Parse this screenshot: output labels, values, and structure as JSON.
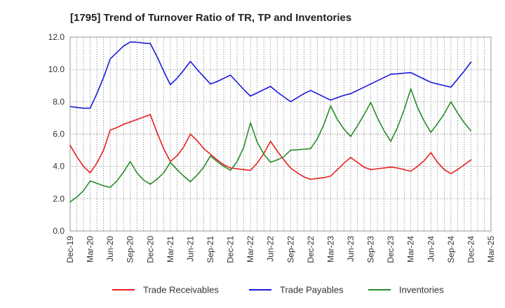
{
  "chart_data": {
    "type": "line",
    "title": "[1795]  Trend of Turnover Ratio of TR, TP and Inventories",
    "xlabel": "",
    "ylabel": "",
    "ylim": [
      0,
      12
    ],
    "yticks": [
      "0.0",
      "2.0",
      "4.0",
      "6.0",
      "8.0",
      "10.0",
      "12.0"
    ],
    "xticks": [
      "Dec-19",
      "Mar-20",
      "Jun-20",
      "Sep-20",
      "Dec-20",
      "Mar-21",
      "Jun-21",
      "Sep-21",
      "Dec-21",
      "Mar-22",
      "Jun-22",
      "Sep-22",
      "Dec-22",
      "Mar-23",
      "Jun-23",
      "Sep-23",
      "Dec-23",
      "Mar-24",
      "Jun-24",
      "Sep-24",
      "Dec-24",
      "Mar-25"
    ],
    "x": [
      "Dec-19",
      "Jan-20",
      "Feb-20",
      "Mar-20",
      "Apr-20",
      "May-20",
      "Jun-20",
      "Jul-20",
      "Aug-20",
      "Sep-20",
      "Oct-20",
      "Nov-20",
      "Dec-20",
      "Jan-21",
      "Feb-21",
      "Mar-21",
      "Apr-21",
      "May-21",
      "Jun-21",
      "Jul-21",
      "Aug-21",
      "Sep-21",
      "Oct-21",
      "Nov-21",
      "Dec-21",
      "Jan-22",
      "Feb-22",
      "Mar-22",
      "Apr-22",
      "May-22",
      "Jun-22",
      "Jul-22",
      "Aug-22",
      "Sep-22",
      "Oct-22",
      "Nov-22",
      "Dec-22",
      "Jan-23",
      "Feb-23",
      "Mar-23",
      "Apr-23",
      "May-23",
      "Jun-23",
      "Jul-23",
      "Aug-23",
      "Sep-23",
      "Oct-23",
      "Nov-23",
      "Dec-23",
      "Jan-24",
      "Feb-24",
      "Mar-24",
      "Apr-24",
      "May-24",
      "Jun-24",
      "Jul-24",
      "Aug-24",
      "Sep-24",
      "Oct-24",
      "Nov-24",
      "Dec-24"
    ],
    "grid": true,
    "legend_position": "bottom",
    "series": [
      {
        "name": "Trade Receivables",
        "color": "#e8211e",
        "values": [
          5.3,
          4.6,
          4.0,
          3.6,
          4.2,
          5.0,
          6.25,
          6.4,
          6.6,
          6.75,
          6.9,
          7.05,
          7.2,
          6.1,
          5.1,
          4.3,
          4.65,
          5.2,
          6.0,
          5.6,
          5.1,
          4.75,
          4.4,
          4.1,
          3.9,
          3.85,
          3.8,
          3.75,
          4.2,
          4.8,
          5.55,
          4.95,
          4.4,
          3.9,
          3.6,
          3.35,
          3.2,
          3.25,
          3.3,
          3.4,
          3.8,
          4.2,
          4.55,
          4.25,
          3.95,
          3.8,
          3.85,
          3.9,
          3.95,
          3.9,
          3.8,
          3.7,
          4.0,
          4.35,
          4.85,
          4.25,
          3.8,
          3.55,
          3.8,
          4.1,
          4.4
        ]
      },
      {
        "name": "Trade Payables",
        "color": "#1a1adb",
        "values": [
          7.7,
          7.65,
          7.6,
          7.6,
          8.5,
          9.5,
          10.65,
          11.05,
          11.45,
          11.7,
          11.68,
          11.63,
          11.6,
          10.8,
          9.9,
          9.05,
          9.45,
          9.95,
          10.5,
          10.0,
          9.55,
          9.1,
          9.25,
          9.45,
          9.65,
          9.2,
          8.75,
          8.35,
          8.55,
          8.75,
          8.95,
          8.6,
          8.3,
          8.0,
          8.25,
          8.5,
          8.7,
          8.5,
          8.3,
          8.1,
          8.25,
          8.4,
          8.5,
          8.7,
          8.9,
          9.1,
          9.3,
          9.5,
          9.7,
          9.73,
          9.77,
          9.8,
          9.6,
          9.4,
          9.2,
          9.1,
          9.0,
          8.9,
          9.4,
          9.9,
          10.45
        ]
      },
      {
        "name": "Inventories",
        "color": "#2a8a2a",
        "values": [
          1.8,
          2.1,
          2.5,
          3.1,
          2.95,
          2.8,
          2.7,
          3.1,
          3.65,
          4.3,
          3.6,
          3.15,
          2.9,
          3.2,
          3.6,
          4.25,
          3.8,
          3.4,
          3.05,
          3.45,
          3.95,
          4.65,
          4.3,
          4.0,
          3.75,
          4.3,
          5.2,
          6.7,
          5.5,
          4.75,
          4.25,
          4.4,
          4.6,
          5.0,
          5.03,
          5.06,
          5.1,
          5.7,
          6.6,
          7.75,
          6.9,
          6.3,
          5.85,
          6.5,
          7.2,
          7.95,
          7.0,
          6.2,
          5.55,
          6.4,
          7.5,
          8.8,
          7.65,
          6.8,
          6.1,
          6.65,
          7.25,
          8.0,
          7.3,
          6.7,
          6.2
        ]
      }
    ]
  }
}
